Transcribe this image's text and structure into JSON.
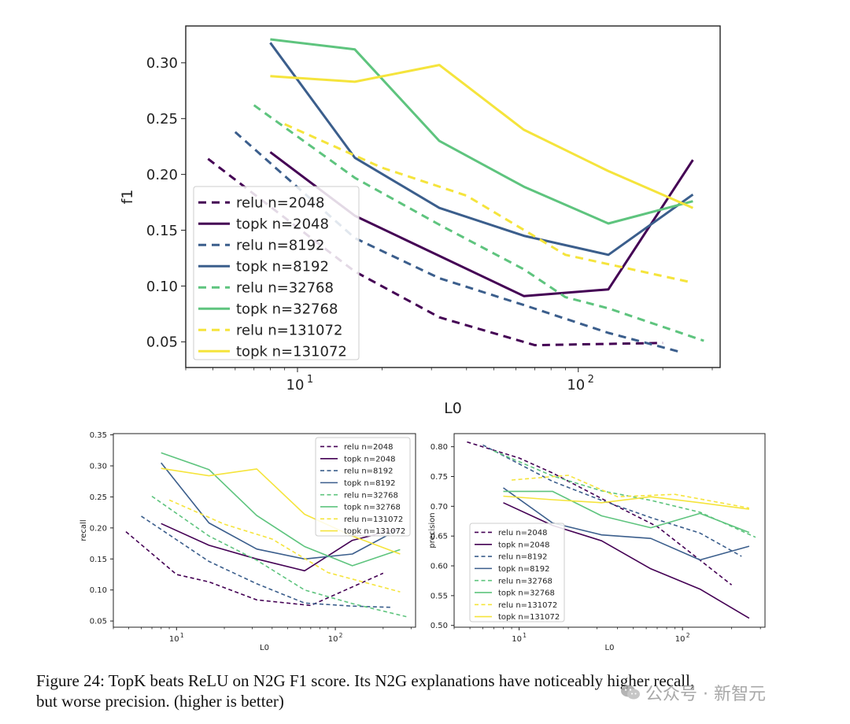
{
  "series_style": [
    {
      "name": "relu n=2048",
      "color": "#440154",
      "dash": true
    },
    {
      "name": "topk n=2048",
      "color": "#440154",
      "dash": false
    },
    {
      "name": "relu n=8192",
      "color": "#3b5e8c",
      "dash": true
    },
    {
      "name": "topk n=8192",
      "color": "#3b5e8c",
      "dash": false
    },
    {
      "name": "relu n=32768",
      "color": "#5ec47e",
      "dash": true
    },
    {
      "name": "topk n=32768",
      "color": "#5ec47e",
      "dash": false
    },
    {
      "name": "relu n=131072",
      "color": "#f5e43c",
      "dash": true
    },
    {
      "name": "topk n=131072",
      "color": "#f5e43c",
      "dash": false
    }
  ],
  "chart_data": [
    {
      "type": "line",
      "xlabel": "L0",
      "ylabel": "f1",
      "xscale": "log",
      "xlim": [
        4,
        320
      ],
      "ylim": [
        0.027,
        0.333
      ],
      "yticks": [
        0.05,
        0.1,
        0.15,
        0.2,
        0.25,
        0.3
      ],
      "ytick_labels": [
        "0.05",
        "0.10",
        "0.15",
        "0.20",
        "0.25",
        "0.30"
      ],
      "xticks": [
        10,
        100
      ],
      "xtick_labels": [
        [
          "10",
          "1"
        ],
        [
          "10",
          "2"
        ]
      ],
      "grid": false,
      "legend_position": "center-left",
      "series": [
        {
          "name": "relu n=2048",
          "x": [
            4.8,
            16,
            32,
            70,
            200
          ],
          "y": [
            0.214,
            0.113,
            0.072,
            0.047,
            0.049
          ]
        },
        {
          "name": "topk n=2048",
          "x": [
            8,
            16,
            64,
            128,
            256
          ],
          "y": [
            0.22,
            0.163,
            0.091,
            0.097,
            0.213
          ]
        },
        {
          "name": "relu n=8192",
          "x": [
            6,
            16,
            32,
            64,
            128,
            230
          ],
          "y": [
            0.238,
            0.143,
            0.107,
            0.083,
            0.058,
            0.041
          ]
        },
        {
          "name": "topk n=8192",
          "x": [
            8,
            16,
            32,
            64,
            128,
            256
          ],
          "y": [
            0.318,
            0.215,
            0.17,
            0.145,
            0.128,
            0.182
          ]
        },
        {
          "name": "relu n=32768",
          "x": [
            7,
            16,
            32,
            64,
            90,
            128,
            280
          ],
          "y": [
            0.262,
            0.197,
            0.155,
            0.115,
            0.09,
            0.08,
            0.051
          ]
        },
        {
          "name": "topk n=32768",
          "x": [
            8,
            16,
            32,
            64,
            128,
            256
          ],
          "y": [
            0.321,
            0.312,
            0.23,
            0.189,
            0.156,
            0.176
          ]
        },
        {
          "name": "relu n=131072",
          "x": [
            9,
            20,
            40,
            90,
            256
          ],
          "y": [
            0.245,
            0.206,
            0.181,
            0.128,
            0.103
          ]
        },
        {
          "name": "topk n=131072",
          "x": [
            8,
            16,
            32,
            64,
            128,
            256
          ],
          "y": [
            0.288,
            0.283,
            0.298,
            0.24,
            0.203,
            0.17
          ]
        }
      ]
    },
    {
      "type": "line",
      "xlabel": "L0",
      "ylabel": "recall",
      "xscale": "log",
      "xlim": [
        4,
        320
      ],
      "ylim": [
        0.04,
        0.352
      ],
      "yticks": [
        0.05,
        0.1,
        0.15,
        0.2,
        0.25,
        0.3,
        0.35
      ],
      "ytick_labels": [
        "0.05",
        "0.10",
        "0.15",
        "0.20",
        "0.25",
        "0.30",
        "0.35"
      ],
      "xticks": [
        10,
        100
      ],
      "xtick_labels": [
        [
          "10",
          "1"
        ],
        [
          "10",
          "2"
        ]
      ],
      "grid": false,
      "legend_position": "top-right",
      "series": [
        {
          "name": "relu n=2048",
          "x": [
            4.8,
            10,
            16,
            32,
            70,
            200
          ],
          "y": [
            0.194,
            0.125,
            0.113,
            0.084,
            0.075,
            0.127
          ]
        },
        {
          "name": "topk n=2048",
          "x": [
            8,
            16,
            32,
            64,
            128,
            256
          ],
          "y": [
            0.207,
            0.172,
            0.15,
            0.131,
            0.18,
            0.199
          ]
        },
        {
          "name": "relu n=8192",
          "x": [
            6,
            16,
            32,
            64,
            128,
            230
          ],
          "y": [
            0.219,
            0.146,
            0.11,
            0.079,
            0.074,
            0.072
          ]
        },
        {
          "name": "topk n=8192",
          "x": [
            8,
            16,
            32,
            64,
            128,
            256
          ],
          "y": [
            0.305,
            0.208,
            0.166,
            0.15,
            0.158,
            0.199
          ]
        },
        {
          "name": "relu n=32768",
          "x": [
            7,
            16,
            32,
            64,
            128,
            280
          ],
          "y": [
            0.251,
            0.187,
            0.148,
            0.1,
            0.078,
            0.057
          ]
        },
        {
          "name": "topk n=32768",
          "x": [
            8,
            16,
            32,
            64,
            128,
            256
          ],
          "y": [
            0.321,
            0.294,
            0.22,
            0.17,
            0.139,
            0.165
          ]
        },
        {
          "name": "relu n=131072",
          "x": [
            9,
            20,
            40,
            90,
            256
          ],
          "y": [
            0.245,
            0.206,
            0.182,
            0.128,
            0.097
          ]
        },
        {
          "name": "topk n=131072",
          "x": [
            8,
            16,
            32,
            64,
            128,
            256
          ],
          "y": [
            0.296,
            0.284,
            0.295,
            0.222,
            0.187,
            0.158
          ]
        }
      ]
    },
    {
      "type": "line",
      "xlabel": "L0",
      "ylabel": "precision",
      "xscale": "log",
      "xlim": [
        4,
        320
      ],
      "ylim": [
        0.497,
        0.822
      ],
      "yticks": [
        0.5,
        0.55,
        0.6,
        0.65,
        0.7,
        0.75,
        0.8
      ],
      "ytick_labels": [
        "0.50",
        "0.55",
        "0.60",
        "0.65",
        "0.70",
        "0.75",
        "0.80"
      ],
      "xticks": [
        10,
        100
      ],
      "xtick_labels": [
        [
          "10",
          "1"
        ],
        [
          "10",
          "2"
        ]
      ],
      "grid": false,
      "legend_position": "bottom-left",
      "series": [
        {
          "name": "relu n=2048",
          "x": [
            4.8,
            10,
            16,
            32,
            70,
            200
          ],
          "y": [
            0.808,
            0.781,
            0.756,
            0.713,
            0.666,
            0.568
          ]
        },
        {
          "name": "topk n=2048",
          "x": [
            8,
            16,
            32,
            64,
            128,
            256
          ],
          "y": [
            0.706,
            0.668,
            0.642,
            0.595,
            0.561,
            0.512
          ]
        },
        {
          "name": "relu n=8192",
          "x": [
            6,
            16,
            32,
            64,
            128,
            230
          ],
          "y": [
            0.803,
            0.742,
            0.71,
            0.681,
            0.655,
            0.616
          ]
        },
        {
          "name": "topk n=8192",
          "x": [
            8,
            16,
            32,
            64,
            128,
            256
          ],
          "y": [
            0.731,
            0.672,
            0.652,
            0.646,
            0.61,
            0.633
          ]
        },
        {
          "name": "relu n=32768",
          "x": [
            7,
            16,
            32,
            64,
            128,
            280
          ],
          "y": [
            0.793,
            0.751,
            0.726,
            0.71,
            0.69,
            0.648
          ]
        },
        {
          "name": "topk n=32768",
          "x": [
            8,
            16,
            32,
            64,
            128,
            256
          ],
          "y": [
            0.725,
            0.725,
            0.684,
            0.664,
            0.688,
            0.656
          ]
        },
        {
          "name": "relu n=131072",
          "x": [
            9,
            20,
            40,
            90,
            256
          ],
          "y": [
            0.744,
            0.752,
            0.716,
            0.72,
            0.697
          ]
        },
        {
          "name": "topk n=131072",
          "x": [
            8,
            16,
            32,
            64,
            128,
            256
          ],
          "y": [
            0.717,
            0.711,
            0.706,
            0.716,
            0.706,
            0.695
          ]
        }
      ]
    }
  ],
  "caption": {
    "line1": "Figure 24: TopK beats ReLU on N2G F1 score. Its N2G explanations have noticeably higher recall,",
    "line2": "but worse precision. (higher is better)"
  },
  "watermark": {
    "text": "公众号 · 新智元",
    "icon": "wechat-icon"
  }
}
